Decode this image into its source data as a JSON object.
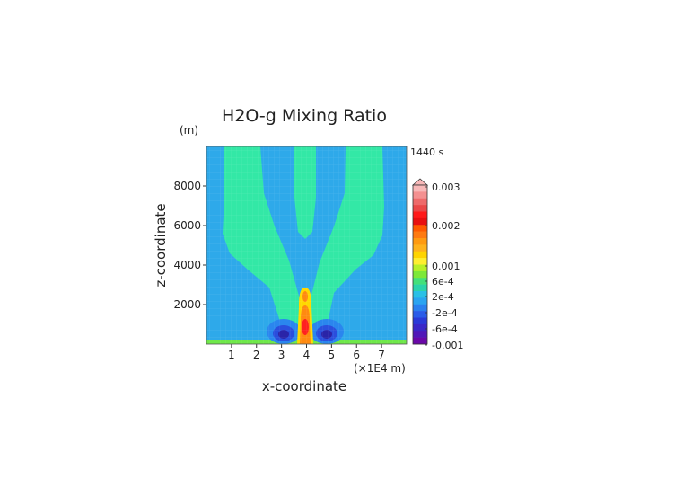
{
  "chart_data": {
    "type": "heatmap",
    "title": "H2O-g Mixing Ratio",
    "xlabel": "x-coordinate",
    "ylabel": "z-coordinate",
    "x_unit": "(×1E4 m)",
    "y_unit": "(m)",
    "time_label": "1440 s",
    "xlim": [
      0,
      8
    ],
    "ylim": [
      0,
      10000
    ],
    "x_ticks": [
      "1",
      "2",
      "3",
      "4",
      "5",
      "6",
      "7"
    ],
    "y_ticks": [
      "2000",
      "4000",
      "6000",
      "8000"
    ],
    "colorbar_labels": [
      "0.003",
      "0.002",
      "0.001",
      "6e-4",
      "2e-4",
      "-2e-4",
      "-6e-4",
      "-0.001"
    ],
    "colorbar_colors": [
      "#f8b8b8",
      "#f49090",
      "#ee6a6a",
      "#ea4848",
      "#ff1a1a",
      "#e81010",
      "#ff5a00",
      "#ff7a10",
      "#ff9a10",
      "#ffb21c",
      "#ffd400",
      "#ffee30",
      "#b8f028",
      "#7de838",
      "#44e07a",
      "#2cd3aa",
      "#2ac0e6",
      "#2aa4f0",
      "#2a80ee",
      "#2a5ce8",
      "#2a3ad8",
      "#3a28c8",
      "#5018b8",
      "#6a08a8"
    ],
    "field_colors": {
      "background": "#2ea9ea",
      "plume": "#33e8a6",
      "ground": "#6fe84a",
      "core_outer": "#ffd800",
      "core_mid": "#ff8a10",
      "core_inner": "#ff2020",
      "lobe_outer": "#2a86ee",
      "lobe_mid": "#2a4edd",
      "lobe_inner": "#2a24a8"
    }
  }
}
